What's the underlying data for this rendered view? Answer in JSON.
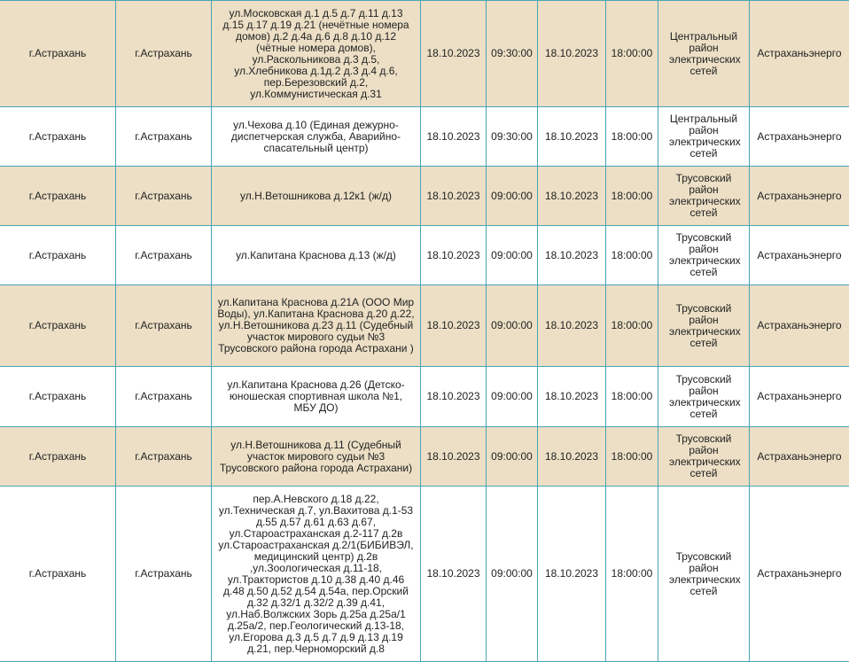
{
  "colors": {
    "row_alt": "#ecdfc5",
    "border": "#4aa3b5"
  },
  "rows": [
    {
      "region": "г.Астрахань",
      "city": "г.Астрахань",
      "address": "ул.Московская д.1 д.5 д.7 д.11 д.13 д.15 д.17 д.19 д.21 (нечётные номера домов) д.2 д.4а д.6 д.8 д.10 д.12 (чётные номера домов), ул.Раскольникова д.3 д.5, ул.Хлебникова д.1д.2 д.3 д.4 д.6, пер.Березовский д.2, ул.Коммунистическая д.31",
      "start_date": "18.10.2023",
      "start_time": "09:30:00",
      "end_date": "18.10.2023",
      "end_time": "18:00:00",
      "district": "Центральный район электрических сетей",
      "company": "Астраханьэнерго"
    },
    {
      "region": "г.Астрахань",
      "city": "г.Астрахань",
      "address": "ул.Чехова д.10 (Единая дежурно-диспетчерская служба, Аварийно-спасательный центр)",
      "start_date": "18.10.2023",
      "start_time": "09:30:00",
      "end_date": "18.10.2023",
      "end_time": "18:00:00",
      "district": "Центральный район электрических сетей",
      "company": "Астраханьэнерго"
    },
    {
      "region": "г.Астрахань",
      "city": "г.Астрахань",
      "address": "ул.Н.Ветошникова д.12к1 (ж/д)",
      "start_date": "18.10.2023",
      "start_time": "09:00:00",
      "end_date": "18.10.2023",
      "end_time": "18:00:00",
      "district": "Трусовский район электрических сетей",
      "company": "Астраханьэнерго"
    },
    {
      "region": "г.Астрахань",
      "city": "г.Астрахань",
      "address": "ул.Капитана Краснова д.13 (ж/д)",
      "start_date": "18.10.2023",
      "start_time": "09:00:00",
      "end_date": "18.10.2023",
      "end_time": "18:00:00",
      "district": "Трусовский район электрических сетей",
      "company": "Астраханьэнерго"
    },
    {
      "region": "г.Астрахань",
      "city": "г.Астрахань",
      "address": "ул.Капитана Краснова д.21А (ООО Мир Воды), ул.Капитана Краснова д.20 д.22, ул.Н.Ветошникова д.23 д.11 (Судебный участок мирового судьи №3 Трусовского района города Астрахани )",
      "start_date": "18.10.2023",
      "start_time": "09:00:00",
      "end_date": "18.10.2023",
      "end_time": "18:00:00",
      "district": "Трусовский район электрических сетей",
      "company": "Астраханьэнерго"
    },
    {
      "region": "г.Астрахань",
      "city": "г.Астрахань",
      "address": "ул.Капитана Краснова д.26 (Детско-юношеская спортивная школа №1, МБУ ДО)",
      "start_date": "18.10.2023",
      "start_time": "09:00:00",
      "end_date": "18.10.2023",
      "end_time": "18:00:00",
      "district": "Трусовский район электрических сетей",
      "company": "Астраханьэнерго"
    },
    {
      "region": "г.Астрахань",
      "city": "г.Астрахань",
      "address": "ул.Н.Ветошникова д.11 (Судебный участок мирового судьи №3 Трусовского района города Астрахани)",
      "start_date": "18.10.2023",
      "start_time": "09:00:00",
      "end_date": "18.10.2023",
      "end_time": "18:00:00",
      "district": "Трусовский район электрических сетей",
      "company": "Астраханьэнерго"
    },
    {
      "region": "г.Астрахань",
      "city": "г.Астрахань",
      "address": "пер.А.Невского д.18 д.22, ул.Техническая д.7, ул.Вахитова д.1-53 д.55 д.57 д.61 д.63 д.67, ул.Староастраханская д.2-117 д.2в ул.Староастраханская д.2/1(БИБИВЭЛ, медицинский центр) д.2в ,ул.Зоологическая д.11-18, ул.Трактористов д.10 д.38 д.40 д.46 д.48 д.50 д.52 д.54 д.54а, пер.Орский д.32 д.32/1 д.32/2 д.39 д.41, ул.Наб.Волжских Зорь д.25а д.25а/1 д.25а/2, пер.Геологический д.13-18, ул.Егорова д.3 д.5 д.7 д.9 д.13 д.19 д.21, пер.Черноморский д.8",
      "start_date": "18.10.2023",
      "start_time": "09:00:00",
      "end_date": "18.10.2023",
      "end_time": "18:00:00",
      "district": "Трусовский район электрических сетей",
      "company": "Астраханьэнерго"
    }
  ]
}
